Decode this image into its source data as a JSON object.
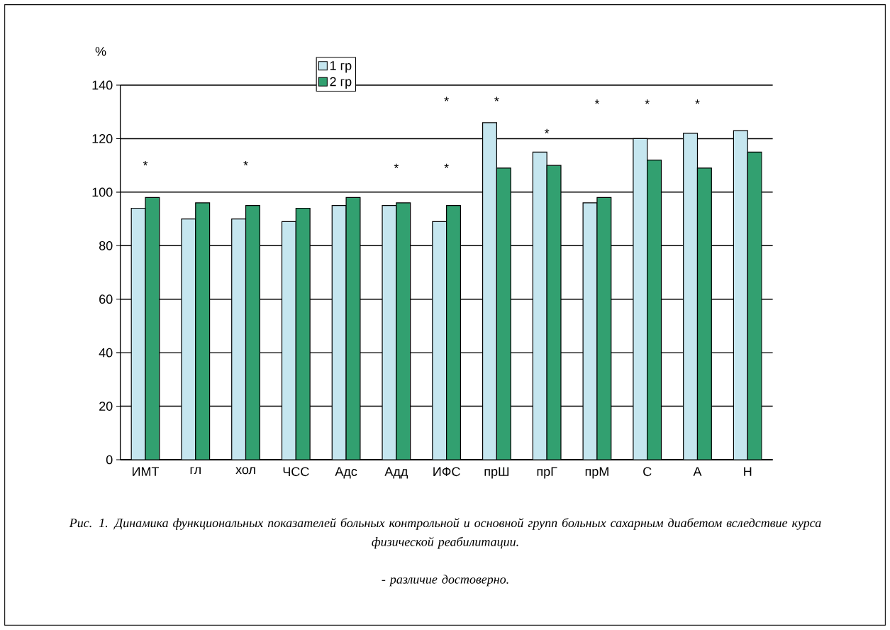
{
  "chart_data": {
    "type": "bar",
    "ylabel": "%",
    "categories": [
      "ИМТ",
      "гл",
      "хол",
      "ЧСС",
      "Адс",
      "Адд",
      "ИФС",
      "прШ",
      "прГ",
      "прМ",
      "С",
      "А",
      "Н"
    ],
    "series": [
      {
        "name": "1 гр",
        "color": "#c5e6ef",
        "values": [
          94,
          90,
          90,
          89,
          95,
          95,
          89,
          126,
          115,
          96,
          120,
          122,
          123
        ]
      },
      {
        "name": "2 гр",
        "color": "#32a070",
        "values": [
          98,
          96,
          95,
          94,
          98,
          96,
          95,
          109,
          110,
          98,
          112,
          109,
          115
        ]
      }
    ],
    "ylim": [
      0,
      140
    ],
    "yticks": [
      0,
      20,
      40,
      60,
      80,
      100,
      120,
      140
    ],
    "grid": "y",
    "legend": "top",
    "annotations": [
      "*",
      "*",
      "*",
      "*",
      "*",
      "*",
      "*",
      "*",
      "*",
      "*",
      "Рис. 1. Динамика функциональных показателей больных контрольной и основной групп больных сахарным диабетом вследствие курса физической реабилитации.",
      "- различие достоверно."
    ]
  }
}
